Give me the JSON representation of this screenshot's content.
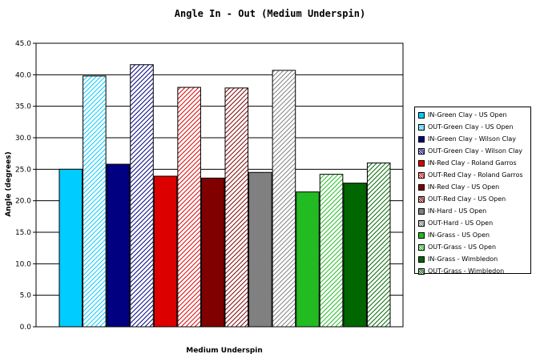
{
  "chart_data": {
    "type": "bar",
    "title": "Angle In - Out (Medium Underspin)",
    "xlabel": "Medium Underspin",
    "ylabel": "Angle (degrees)",
    "ylim": [
      0,
      45
    ],
    "yticks": [
      "0.0",
      "5.0",
      "10.0",
      "15.0",
      "20.0",
      "25.0",
      "30.0",
      "35.0",
      "40.0",
      "45.0"
    ],
    "grid": true,
    "legend_position": "right",
    "series": [
      {
        "name": "IN-Green Clay - US Open",
        "value": 25.0,
        "color": "#00CCFF",
        "pattern": "solid"
      },
      {
        "name": "OUT-Green Clay - US Open",
        "value": 39.8,
        "color": "#00CCFF",
        "pattern": "hatch"
      },
      {
        "name": "IN-Green Clay - Wilson Clay",
        "value": 25.8,
        "color": "#000080",
        "pattern": "solid"
      },
      {
        "name": "OUT-Green Clay - Wilson Clay",
        "value": 41.6,
        "color": "#000080",
        "pattern": "hatch"
      },
      {
        "name": "IN-Red Clay - Roland Garros",
        "value": 23.9,
        "color": "#DD0000",
        "pattern": "solid"
      },
      {
        "name": "OUT-Red Clay - Roland Garros",
        "value": 38.0,
        "color": "#DD0000",
        "pattern": "hatch"
      },
      {
        "name": "IN-Red Clay - US Open",
        "value": 23.6,
        "color": "#800000",
        "pattern": "solid"
      },
      {
        "name": "OUT-Red Clay - US Open",
        "value": 37.9,
        "color": "#800000",
        "pattern": "hatch"
      },
      {
        "name": "IN-Hard - US Open",
        "value": 24.5,
        "color": "#808080",
        "pattern": "solid"
      },
      {
        "name": "OUT-Hard - US Open",
        "value": 40.7,
        "color": "#808080",
        "pattern": "hatch"
      },
      {
        "name": "IN-Grass - US Open",
        "value": 21.4,
        "color": "#22BB22",
        "pattern": "solid"
      },
      {
        "name": "OUT-Grass - US Open",
        "value": 24.2,
        "color": "#22BB22",
        "pattern": "hatch"
      },
      {
        "name": "IN-Grass - Wimbledon",
        "value": 22.8,
        "color": "#006600",
        "pattern": "solid"
      },
      {
        "name": "OUT-Grass - Wimbledon",
        "value": 26.0,
        "color": "#006600",
        "pattern": "hatch"
      }
    ]
  }
}
